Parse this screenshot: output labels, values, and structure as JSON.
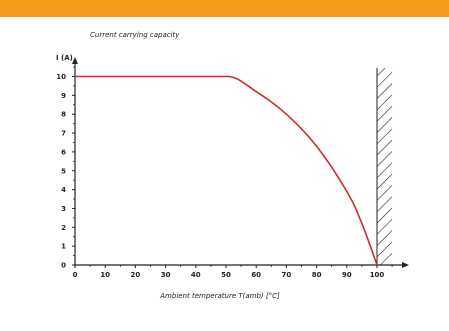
{
  "colors": {
    "header_bar": "#f59b1c",
    "curve": "#d42a2a",
    "axis": "#222222",
    "hatch": "#222222",
    "background": "#ffffff"
  },
  "chart_data": {
    "type": "line",
    "title": "Current carrying capacity",
    "xlabel": "Ambient temperature T(amb) [°C]",
    "ylabel": "I (A)",
    "xlim": [
      0,
      108
    ],
    "ylim": [
      0,
      11
    ],
    "xticks": [
      "0",
      "10",
      "20",
      "30",
      "40",
      "50",
      "60",
      "70",
      "80",
      "90",
      "100"
    ],
    "yticks": [
      "0",
      "1",
      "2",
      "3",
      "4",
      "5",
      "6",
      "7",
      "8",
      "9",
      "10"
    ],
    "grid": false,
    "series": [
      {
        "x": [
          0,
          51,
          60,
          70,
          80,
          90,
          95,
          100
        ],
        "y": [
          10,
          10,
          9.2,
          8,
          6.3,
          3.9,
          2.2,
          0
        ]
      }
    ],
    "limit_region": {
      "from_x": 100,
      "to_x": 105,
      "style": "hatched"
    }
  }
}
